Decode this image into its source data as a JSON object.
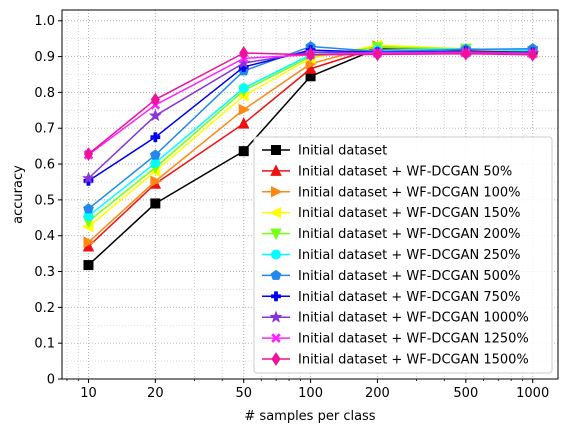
{
  "chart_data": {
    "type": "line",
    "title": "",
    "xlabel": "# samples per class",
    "ylabel": "accuracy",
    "xscale": "log",
    "xlim": [
      7.6,
      1300
    ],
    "ylim": [
      0,
      1.03
    ],
    "grid": "on (major and minor, dotted)",
    "legend_position": "lower-right",
    "x": [
      10,
      20,
      50,
      100,
      200,
      500,
      1000
    ],
    "xticks": [
      "10",
      "20",
      "50",
      "100",
      "200",
      "500",
      "1000"
    ],
    "yticks": [
      "0",
      "0.1",
      "0.2",
      "0.3",
      "0.4",
      "0.5",
      "0.6",
      "0.7",
      "0.8",
      "0.9",
      "1.0"
    ],
    "series": [
      {
        "name": "Initial dataset",
        "color": "#000000",
        "marker": "square",
        "values": [
          0.318,
          0.49,
          0.636,
          0.845,
          0.922,
          0.918,
          0.915
        ]
      },
      {
        "name": "Initial dataset + WF-DCGAN 50%",
        "color": "#ee1111",
        "marker": "triangle-up",
        "values": [
          0.37,
          0.545,
          0.713,
          0.866,
          0.925,
          0.917,
          0.912
        ]
      },
      {
        "name": "Initial dataset + WF-DCGAN 100%",
        "color": "#ff8811",
        "marker": "triangle-right",
        "values": [
          0.382,
          0.552,
          0.752,
          0.88,
          0.93,
          0.92,
          0.913
        ]
      },
      {
        "name": "Initial dataset + WF-DCGAN 150%",
        "color": "#ffff00",
        "marker": "triangle-left",
        "values": [
          0.425,
          0.58,
          0.79,
          0.895,
          0.932,
          0.921,
          0.914
        ]
      },
      {
        "name": "Initial dataset + WF-DCGAN 200%",
        "color": "#77ff11",
        "marker": "triangle-down",
        "values": [
          0.44,
          0.59,
          0.805,
          0.9,
          0.926,
          0.922,
          0.916
        ]
      },
      {
        "name": "Initial dataset + WF-DCGAN 250%",
        "color": "#00ffff",
        "marker": "circle",
        "values": [
          0.455,
          0.603,
          0.812,
          0.905,
          0.918,
          0.921,
          0.918
        ]
      },
      {
        "name": "Initial dataset + WF-DCGAN 500%",
        "color": "#2288ee",
        "marker": "pentagon",
        "values": [
          0.475,
          0.625,
          0.86,
          0.928,
          0.914,
          0.92,
          0.922
        ]
      },
      {
        "name": "Initial dataset + WF-DCGAN 750%",
        "color": "#0000ee",
        "marker": "plus",
        "values": [
          0.553,
          0.675,
          0.871,
          0.918,
          0.912,
          0.915,
          0.912
        ]
      },
      {
        "name": "Initial dataset + WF-DCGAN 1000%",
        "color": "#8833dd",
        "marker": "star",
        "values": [
          0.56,
          0.735,
          0.882,
          0.912,
          0.911,
          0.913,
          0.91
        ]
      },
      {
        "name": "Initial dataset + WF-DCGAN 1250%",
        "color": "#ff22ff",
        "marker": "x",
        "values": [
          0.626,
          0.765,
          0.895,
          0.905,
          0.91,
          0.91,
          0.908
        ]
      },
      {
        "name": "Initial dataset + WF-DCGAN 1500%",
        "color": "#ee1199",
        "marker": "diamond",
        "values": [
          0.628,
          0.78,
          0.91,
          0.905,
          0.906,
          0.908,
          0.905
        ]
      }
    ]
  }
}
